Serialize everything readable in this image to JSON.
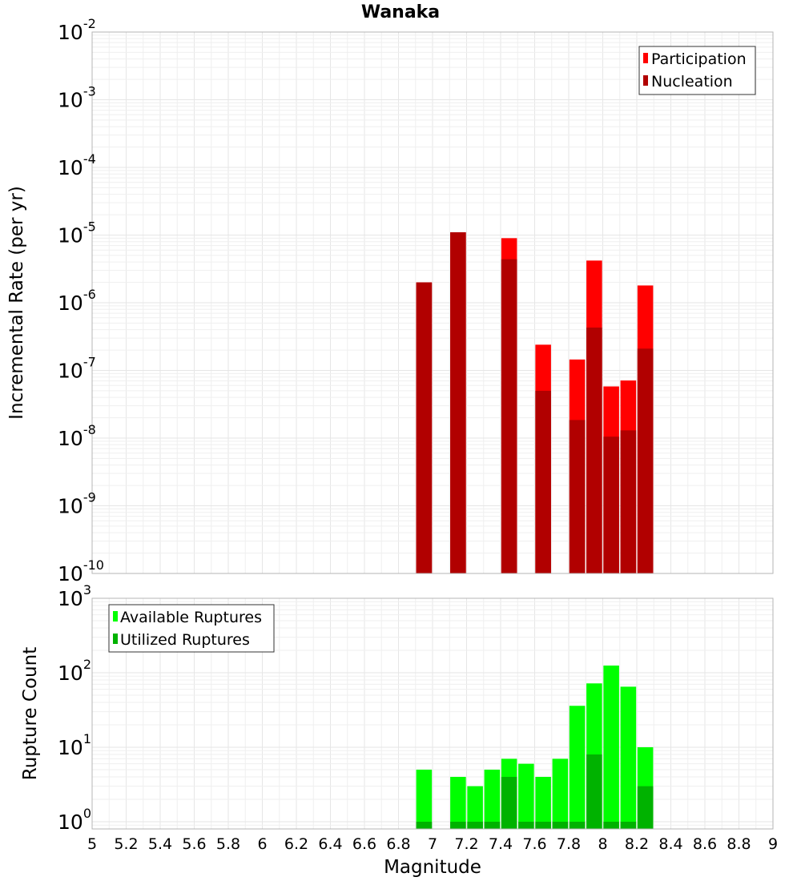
{
  "chart_data": [
    {
      "type": "bar",
      "title": "Wanaka",
      "xlabel": "Magnitude",
      "ylabel": "Incremental Rate (per yr)",
      "yscale": "log",
      "ylim": [
        1e-10,
        0.01
      ],
      "xlim": [
        5,
        9
      ],
      "x_ticks": [
        "5",
        "5.2",
        "5.4",
        "5.6",
        "5.8",
        "6",
        "6.2",
        "6.4",
        "6.6",
        "6.8",
        "7",
        "7.2",
        "7.4",
        "7.6",
        "7.8",
        "8",
        "8.2",
        "8.4",
        "8.6",
        "8.8",
        "9"
      ],
      "y_ticks": [
        {
          "base": "10",
          "exp": "-10",
          "value": 1e-10
        },
        {
          "base": "10",
          "exp": "-9",
          "value": 1e-09
        },
        {
          "base": "10",
          "exp": "-8",
          "value": 1e-08
        },
        {
          "base": "10",
          "exp": "-7",
          "value": 1e-07
        },
        {
          "base": "10",
          "exp": "-6",
          "value": 1e-06
        },
        {
          "base": "10",
          "exp": "-5",
          "value": 1e-05
        },
        {
          "base": "10",
          "exp": "-4",
          "value": 0.0001
        },
        {
          "base": "10",
          "exp": "-3",
          "value": 0.001
        },
        {
          "base": "10",
          "exp": "-2",
          "value": 0.01
        }
      ],
      "grid": true,
      "legend_position": "top-right",
      "series": [
        {
          "name": "Participation",
          "color": "#ff0000",
          "points": [
            {
              "x": 6.95,
              "y": 2e-06
            },
            {
              "x": 7.15,
              "y": 1.1e-05
            },
            {
              "x": 7.45,
              "y": 9e-06
            },
            {
              "x": 7.65,
              "y": 2.4e-07
            },
            {
              "x": 7.85,
              "y": 1.45e-07
            },
            {
              "x": 7.95,
              "y": 4.2e-06
            },
            {
              "x": 8.05,
              "y": 5.8e-08
            },
            {
              "x": 8.15,
              "y": 7.1e-08
            },
            {
              "x": 8.25,
              "y": 1.8e-06
            }
          ]
        },
        {
          "name": "Nucleation",
          "color": "#b10000",
          "points": [
            {
              "x": 6.95,
              "y": 2e-06
            },
            {
              "x": 7.15,
              "y": 1.1e-05
            },
            {
              "x": 7.45,
              "y": 4.4e-06
            },
            {
              "x": 7.65,
              "y": 5e-08
            },
            {
              "x": 7.85,
              "y": 1.85e-08
            },
            {
              "x": 7.95,
              "y": 4.3e-07
            },
            {
              "x": 8.05,
              "y": 1.05e-08
            },
            {
              "x": 8.15,
              "y": 1.3e-08
            },
            {
              "x": 8.25,
              "y": 2.1e-07
            }
          ]
        }
      ]
    },
    {
      "type": "bar",
      "xlabel": "Magnitude",
      "ylabel": "Rupture Count",
      "yscale": "log",
      "ylim": [
        0.8,
        1000
      ],
      "xlim": [
        5,
        9
      ],
      "y_ticks": [
        {
          "base": "10",
          "exp": "0",
          "value": 1
        },
        {
          "base": "10",
          "exp": "1",
          "value": 10
        },
        {
          "base": "10",
          "exp": "2",
          "value": 100
        },
        {
          "base": "10",
          "exp": "3",
          "value": 1000
        }
      ],
      "grid": true,
      "legend_position": "top-left",
      "series": [
        {
          "name": "Available Ruptures",
          "color": "#00ff00",
          "points": [
            {
              "x": 6.95,
              "y": 5
            },
            {
              "x": 7.15,
              "y": 4
            },
            {
              "x": 7.25,
              "y": 3
            },
            {
              "x": 7.35,
              "y": 5
            },
            {
              "x": 7.45,
              "y": 7
            },
            {
              "x": 7.55,
              "y": 6
            },
            {
              "x": 7.65,
              "y": 4
            },
            {
              "x": 7.75,
              "y": 7
            },
            {
              "x": 7.85,
              "y": 36
            },
            {
              "x": 7.95,
              "y": 72
            },
            {
              "x": 8.05,
              "y": 125
            },
            {
              "x": 8.15,
              "y": 65
            },
            {
              "x": 8.25,
              "y": 10
            }
          ]
        },
        {
          "name": "Utilized Ruptures",
          "color": "#00b200",
          "points": [
            {
              "x": 6.95,
              "y": 1
            },
            {
              "x": 7.15,
              "y": 1
            },
            {
              "x": 7.25,
              "y": 1
            },
            {
              "x": 7.35,
              "y": 1
            },
            {
              "x": 7.45,
              "y": 4
            },
            {
              "x": 7.55,
              "y": 1
            },
            {
              "x": 7.65,
              "y": 1
            },
            {
              "x": 7.75,
              "y": 1
            },
            {
              "x": 7.85,
              "y": 1
            },
            {
              "x": 7.95,
              "y": 8
            },
            {
              "x": 8.05,
              "y": 1
            },
            {
              "x": 8.15,
              "y": 1
            },
            {
              "x": 8.25,
              "y": 3
            }
          ]
        }
      ]
    }
  ]
}
